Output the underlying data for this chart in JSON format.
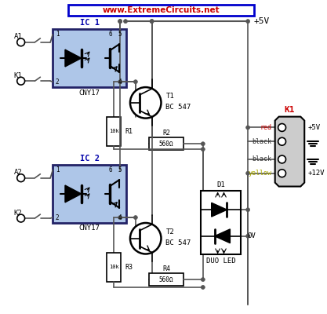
{
  "title": "www.ExtremeCircuits.net",
  "bg_color": "#ffffff",
  "title_color": "#cc0000",
  "title_bg": "#ffffff",
  "border_color": "#0000cc",
  "wire_color": "#555555",
  "component_color": "#000000",
  "ic_fill": "#aec6e8",
  "ic_border": "#222266",
  "plus5v_label": "+5V",
  "plus12v_label": "+12V",
  "ov_label": "0V",
  "duo_led_label": "DUO LED",
  "k1_label": "K1",
  "ic1_label": "IC 1",
  "ic2_label": "IC 2",
  "ic1_part": "CNY17",
  "ic2_part": "CNY17",
  "t1_label": "T1",
  "t2_label": "T2",
  "bc547_1": "BC 547",
  "bc547_2": "BC 547",
  "r1_label": "R1",
  "r2_label": "R2",
  "r3_label": "R3",
  "r4_label": "R4",
  "r1_val": "10k",
  "r2_val": "560Ω",
  "r3_val": "10k",
  "r4_val": "560Ω",
  "d1_label": "D1",
  "red_label": "red",
  "black1_label": "black",
  "black2_label": "black",
  "yellow_label": "yellow",
  "a1_label": "A1",
  "a2_label": "A2",
  "k1_sw_label": "K1",
  "k2_sw_label": "K2"
}
